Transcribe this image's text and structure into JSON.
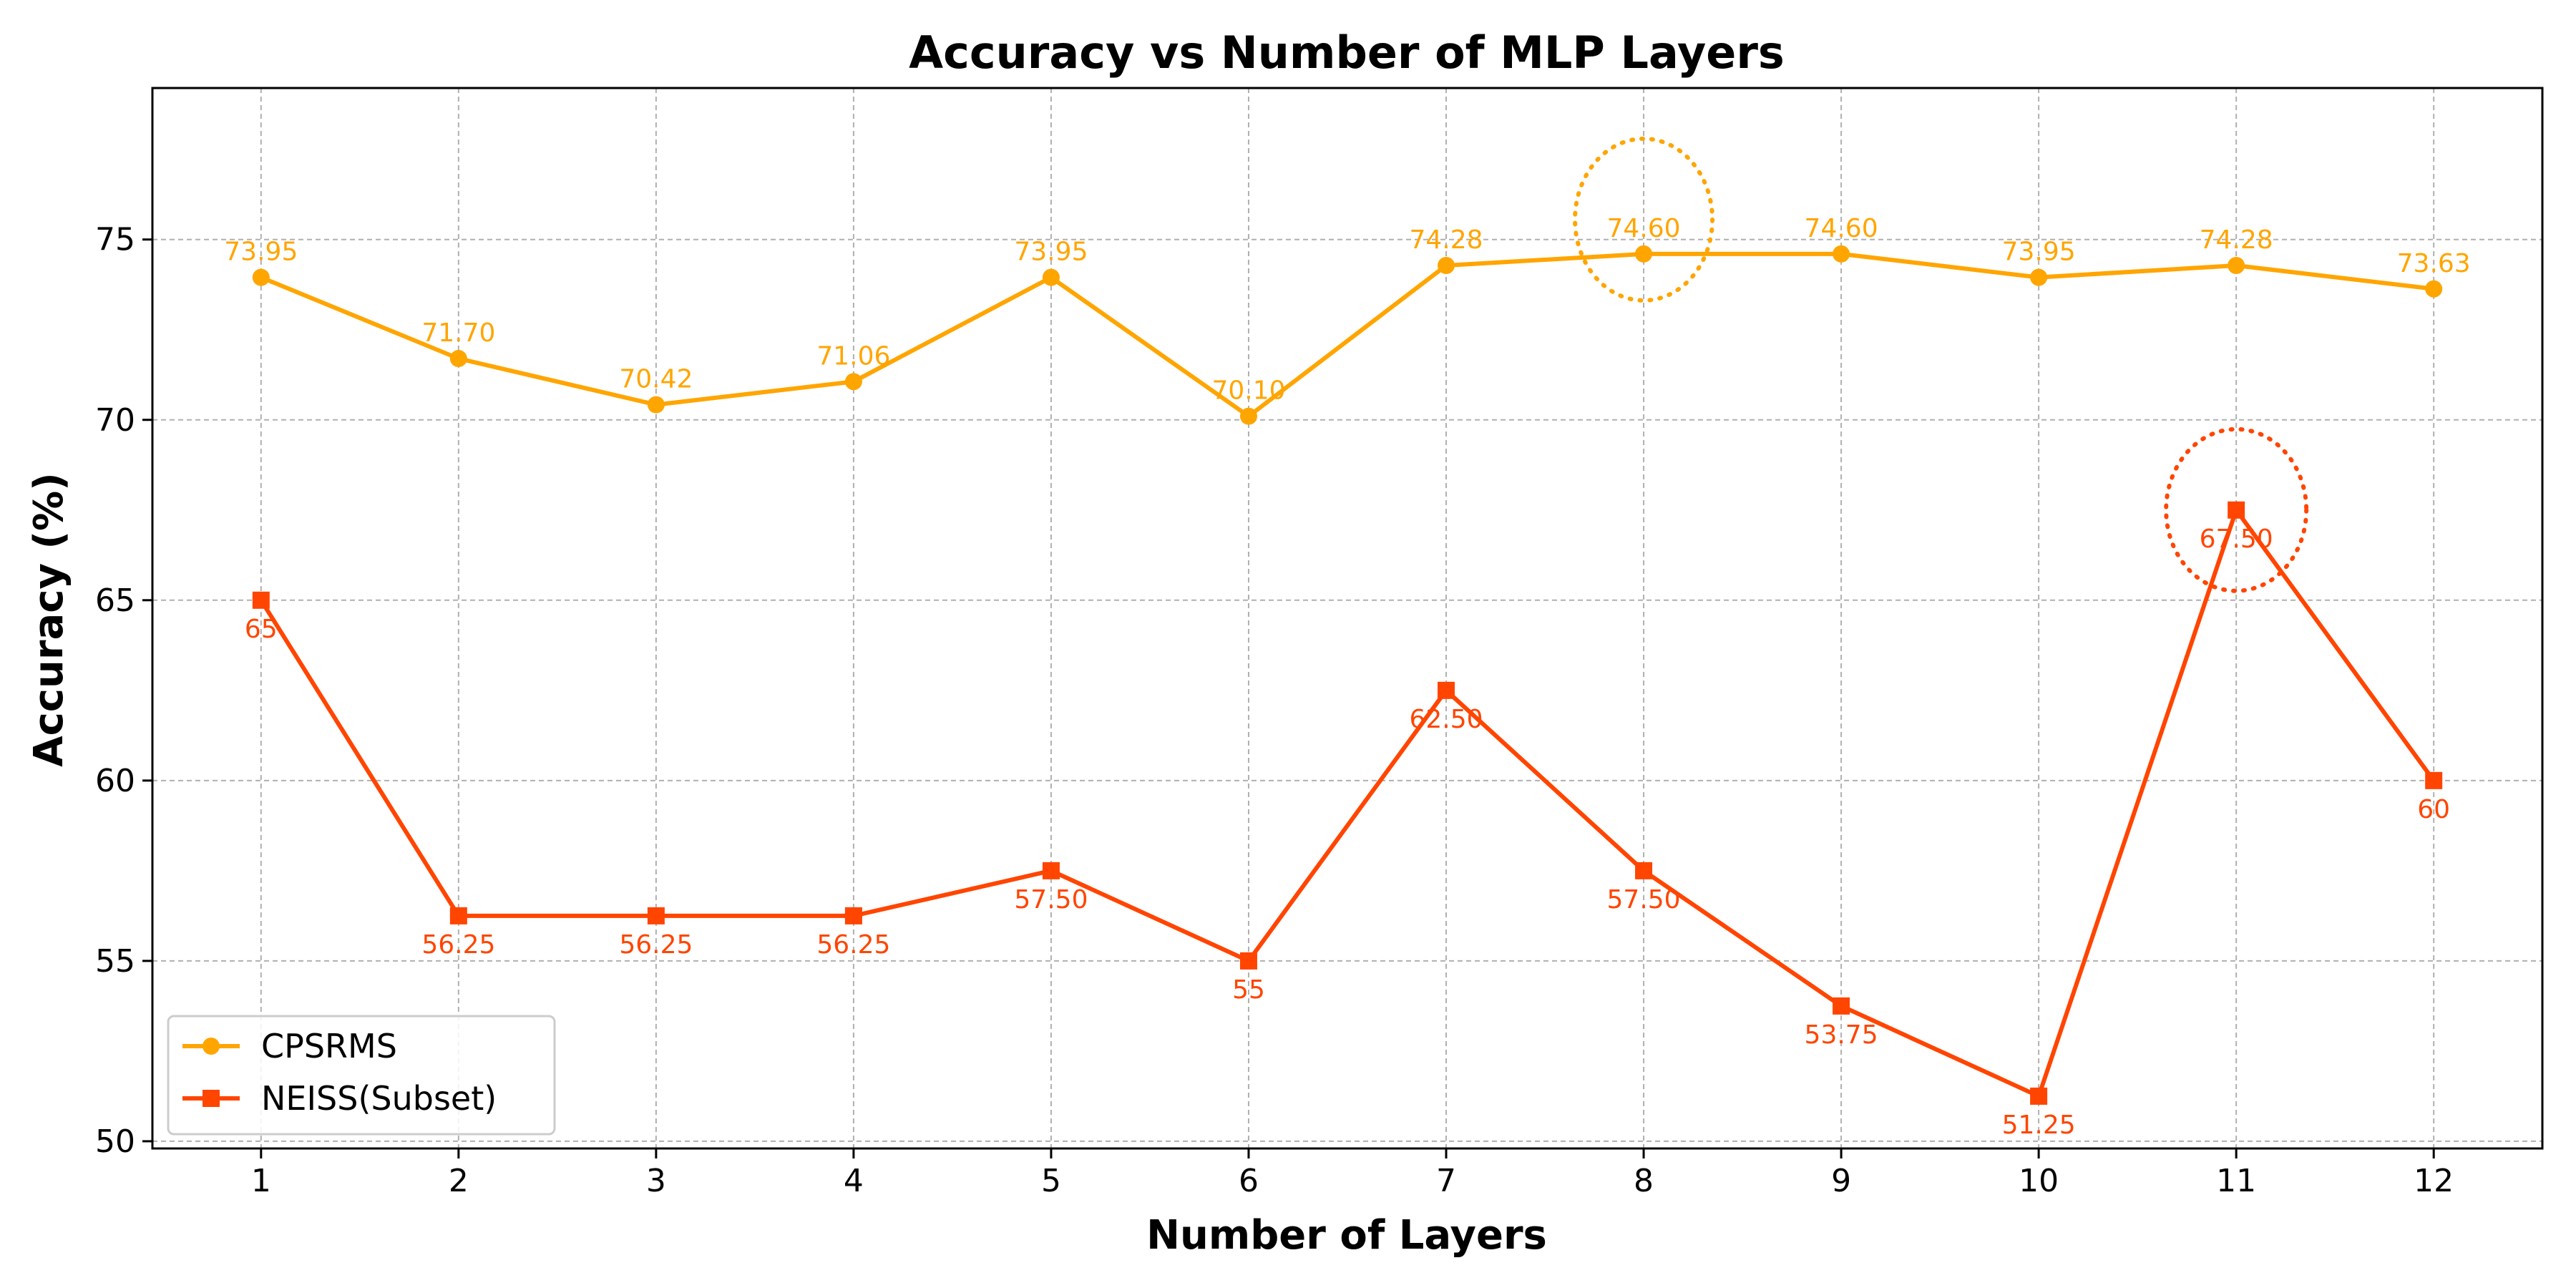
{
  "chart_data": {
    "type": "line",
    "title": "Accuracy vs Number of MLP Layers",
    "xlabel": "Number of Layers",
    "ylabel": "Accuracy (%)",
    "x": [
      1,
      2,
      3,
      4,
      5,
      6,
      7,
      8,
      9,
      10,
      11,
      12
    ],
    "xlim": [
      0.45,
      12.55
    ],
    "ylim": [
      49.8,
      79.2
    ],
    "yticks": [
      50,
      55,
      60,
      65,
      70,
      75
    ],
    "grid": true,
    "legend_position": "lower-left",
    "series": [
      {
        "name": "CPSRMS",
        "color": "#FFA500",
        "marker": "circle",
        "label_position": "above",
        "values": [
          73.95,
          71.7,
          70.42,
          71.06,
          73.95,
          70.1,
          74.28,
          74.6,
          74.6,
          73.95,
          74.28,
          73.63
        ],
        "labels": [
          "73.95",
          "71.70",
          "70.42",
          "71.06",
          "73.95",
          "70.10",
          "74.28",
          "74.60",
          "74.60",
          "73.95",
          "74.28",
          "73.63"
        ],
        "highlight_x": 8
      },
      {
        "name": "NEISS(Subset)",
        "color": "#FF4500",
        "marker": "square",
        "label_position": "below",
        "values": [
          65,
          56.25,
          56.25,
          56.25,
          57.5,
          55,
          62.5,
          57.5,
          53.75,
          51.25,
          67.5,
          60
        ],
        "labels": [
          "65",
          "56.25",
          "56.25",
          "56.25",
          "57.50",
          "55",
          "62.50",
          "57.50",
          "53.75",
          "51.25",
          "67.50",
          "60"
        ],
        "highlight_x": 11
      }
    ]
  }
}
